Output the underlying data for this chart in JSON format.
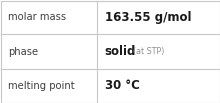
{
  "rows": [
    {
      "label": "molar mass",
      "value": "163.55 g/mol",
      "suffix": null
    },
    {
      "label": "phase",
      "value": "solid",
      "suffix": "(at STP)"
    },
    {
      "label": "melting point",
      "value": "30 °C",
      "suffix": null
    }
  ],
  "bg_color": "#ffffff",
  "border_color": "#c8c8c8",
  "label_color": "#404040",
  "value_color": "#1a1a1a",
  "suffix_color": "#909090",
  "label_fontsize": 7.2,
  "value_fontsize": 8.5,
  "suffix_fontsize": 5.8,
  "col_split": 0.44
}
